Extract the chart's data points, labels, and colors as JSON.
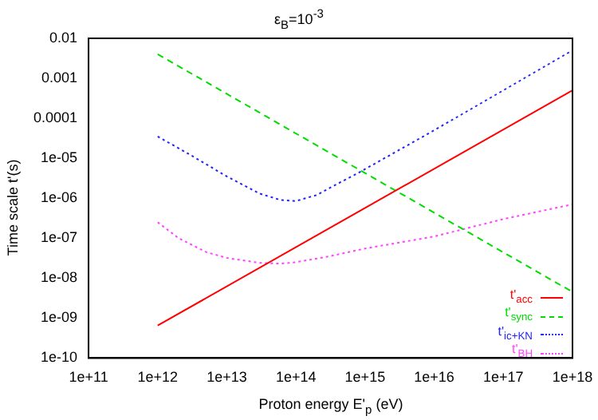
{
  "chart_data": {
    "type": "line",
    "title": "ε$_{B}$=10$^{-3}$",
    "xlabel": "Proton energy E'$_{p}$ (eV)",
    "ylabel": "Time scale t'(s)",
    "log": "xy",
    "grid": false,
    "legend": "bottom right",
    "xlim": [
      100000000000.0,
      1e+18
    ],
    "xticks": [
      {
        "value": 100000000000.0,
        "label": "1e+11"
      },
      {
        "value": 1000000000000.0,
        "label": "1e+12"
      },
      {
        "value": 10000000000000.0,
        "label": "1e+13"
      },
      {
        "value": 100000000000000.0,
        "label": "1e+14"
      },
      {
        "value": 1000000000000000.0,
        "label": "1e+15"
      },
      {
        "value": 1e+16,
        "label": "1e+16"
      },
      {
        "value": 1e+17,
        "label": "1e+17"
      },
      {
        "value": 1e+18,
        "label": "1e+18"
      }
    ],
    "ylim": [
      1e-10,
      0.01
    ],
    "yticks": [
      {
        "value": 1e-10,
        "label": "1e-10"
      },
      {
        "value": 1e-09,
        "label": "1e-09"
      },
      {
        "value": 1e-08,
        "label": "1e-08"
      },
      {
        "value": 1e-07,
        "label": "1e-07"
      },
      {
        "value": 1e-06,
        "label": "1e-06"
      },
      {
        "value": 1e-05,
        "label": "1e-05"
      },
      {
        "value": 0.0001,
        "label": "0.0001"
      },
      {
        "value": 0.001,
        "label": "0.001"
      },
      {
        "value": 0.01,
        "label": "0.01"
      }
    ],
    "series": [
      {
        "name": "t'$_{acc}$",
        "color": "#ff0000",
        "line_style": "solid",
        "x": [
          1000000000000.0,
          1e+18
        ],
        "values": [
          6.5e-10,
          0.0005
        ]
      },
      {
        "name": "t'$_{sync}$",
        "color": "#00dd00",
        "line_style": "dashed",
        "x": [
          1000000000000.0,
          1e+18
        ],
        "values": [
          0.004,
          4.5e-09
        ]
      },
      {
        "name": "t'$_{ic+KN}$",
        "color": "#2222ff",
        "line_style": "dotted",
        "x": [
          1000000000000.0,
          3000000000000.0,
          10000000000000.0,
          30000000000000.0,
          60000000000000.0,
          100000000000000.0,
          200000000000000.0,
          400000000000000.0,
          800000000000000.0,
          1e+16,
          1e+17,
          1e+18
        ],
        "values": [
          3.5e-05,
          1.2e-05,
          3.5e-06,
          1.3e-06,
          9e-07,
          8.5e-07,
          1.2e-06,
          2.3e-06,
          4.3e-06,
          5e-05,
          0.0005,
          0.005
        ]
      },
      {
        "name": "t'$_{BH}$",
        "color": "#ff44ff",
        "line_style": "dotted",
        "x": [
          1000000000000.0,
          2000000000000.0,
          5000000000000.0,
          10000000000000.0,
          30000000000000.0,
          60000000000000.0,
          100000000000000.0,
          300000000000000.0,
          1000000000000000.0,
          1e+16,
          1e+17,
          1e+18
        ],
        "values": [
          2.5e-07,
          1e-07,
          4.5e-08,
          3.2e-08,
          2.4e-08,
          2.3e-08,
          2.5e-08,
          3.5e-08,
          5.5e-08,
          1.1e-07,
          3e-07,
          7e-07
        ]
      }
    ]
  }
}
